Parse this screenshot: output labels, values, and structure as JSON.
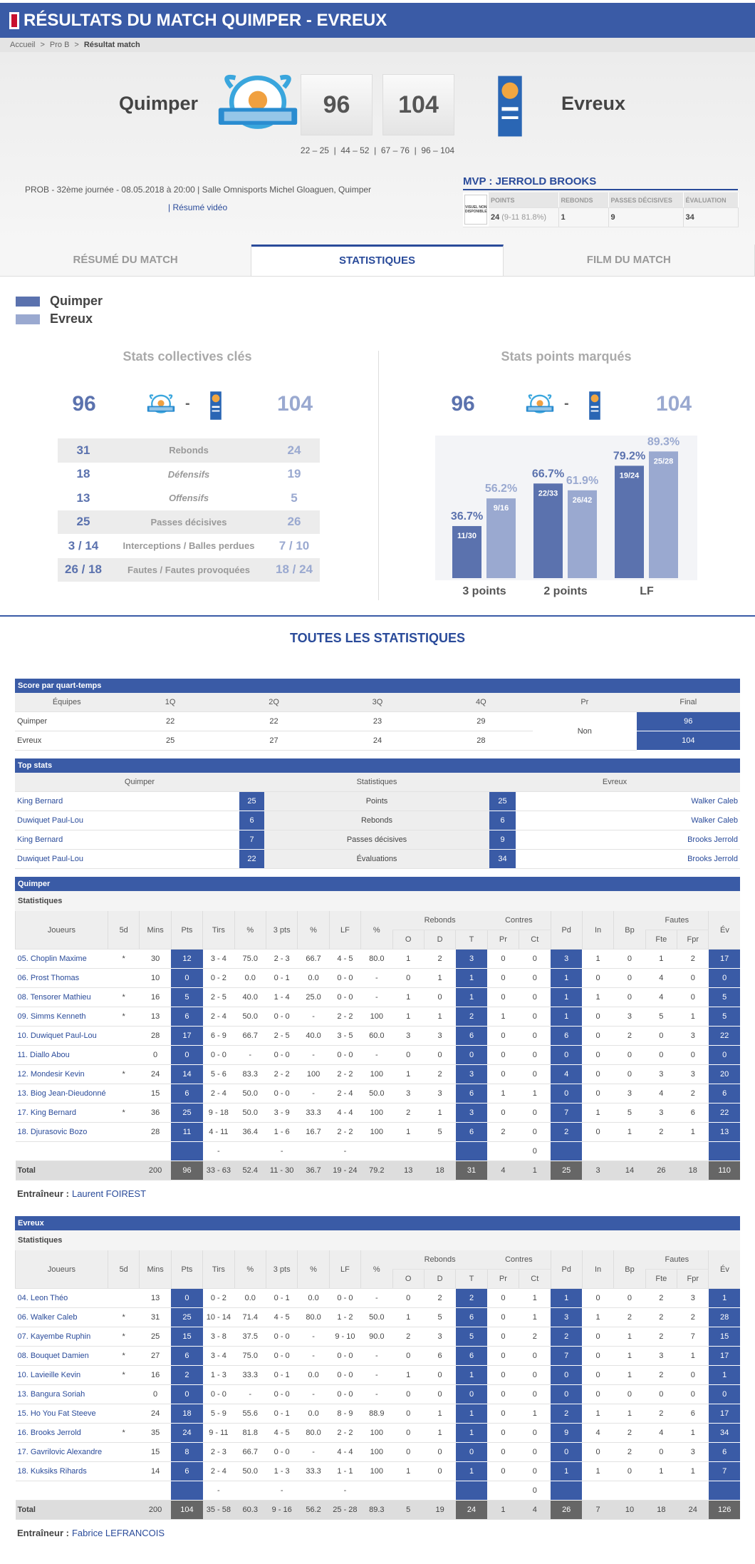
{
  "header": {
    "title": "RÉSULTATS DU MATCH QUIMPER - EVREUX"
  },
  "breadcrumb": {
    "items": [
      "Accueil",
      "Pro B",
      "Résultat match"
    ],
    "separator": ">"
  },
  "match": {
    "home": {
      "name": "Quimper",
      "score": 96
    },
    "away": {
      "name": "Evreux",
      "score": 104
    },
    "quarter_scores": "22 – 25  |  44 – 52  |  67 – 76  |  96 – 104",
    "info": "PROB - 32ème journée - 08.05.2018 à 20:00 | Salle Omnisports Michel Gloaguen, Quimper",
    "video": "| Résumé vidéo"
  },
  "mvp": {
    "title": "MVP : JERROLD BROOKS",
    "photo": "VISUEL NON DISPONIBLE",
    "columns": [
      "POINTS",
      "REBONDS",
      "PASSES DÉCISIVES",
      "ÉVALUATION"
    ],
    "values": [
      24,
      1,
      9,
      34
    ],
    "points_detail": "(9-11 81.8%)"
  },
  "tabs": {
    "items": [
      "RÉSUMÉ DU MATCH",
      "STATISTIQUES",
      "FILM DU MATCH"
    ],
    "active": 1
  },
  "key_stats": {
    "title": "Stats collectives clés",
    "score_separator": "-",
    "rows": [
      {
        "home": 31,
        "label": "Rebonds",
        "away": 24
      },
      {
        "home": 18,
        "label": "Défensifs",
        "away": 19
      },
      {
        "home": 13,
        "label": "Offensifs",
        "away": 5
      },
      {
        "home": 25,
        "label": "Passes décisives",
        "away": 26
      },
      {
        "home": "3 / 14",
        "label": "Interceptions / Balles perdues",
        "away": "7 / 10"
      },
      {
        "home": "26 / 18",
        "label": "Fautes / Fautes provoquées",
        "away": "18 / 24"
      }
    ]
  },
  "chart_data": {
    "type": "bar",
    "title": "Stats points marqués",
    "categories": [
      "3 points",
      "2 points",
      "LF"
    ],
    "series": [
      {
        "name": "Quimper",
        "color": "#5b72ae",
        "values": [
          36.7,
          66.7,
          79.2
        ],
        "value_labels": [
          "36.7%",
          "66.7%",
          "79.2%"
        ],
        "inner_labels": [
          "11/30",
          "22/33",
          "19/24"
        ]
      },
      {
        "name": "Evreux",
        "color": "#9aa9d0",
        "values": [
          56.2,
          61.9,
          89.3
        ],
        "value_labels": [
          "56.2%",
          "61.9%",
          "89.3%"
        ],
        "inner_labels": [
          "9/16",
          "26/42",
          "25/28"
        ]
      }
    ]
  },
  "all_stats": {
    "title": "TOUTES LES STATISTIQUES",
    "quarters": {
      "title": "Score par quart-temps",
      "columns": [
        "Équipes",
        "1Q",
        "2Q",
        "3Q",
        "4Q",
        "Pr",
        "Final"
      ],
      "rows": [
        {
          "team": "Quimper",
          "scores": [
            22,
            22,
            23,
            29
          ],
          "final": 96
        },
        {
          "team": "Evreux",
          "scores": [
            25,
            27,
            24,
            28
          ],
          "final": 104
        }
      ],
      "overtime": "Non"
    },
    "top_stats": {
      "title": "Top stats",
      "columns": [
        "Quimper",
        "Statistiques",
        "Evreux"
      ],
      "rows": [
        {
          "home_player": "King Bernard",
          "home_value": 25,
          "stat": "Points",
          "away_value": 25,
          "away_player": "Walker Caleb"
        },
        {
          "home_player": "Duwiquet Paul-Lou",
          "home_value": 6,
          "stat": "Rebonds",
          "away_value": 6,
          "away_player": "Walker Caleb"
        },
        {
          "home_player": "King Bernard",
          "home_value": 7,
          "stat": "Passes décisives",
          "away_value": 9,
          "away_player": "Brooks Jerrold"
        },
        {
          "home_player": "Duwiquet Paul-Lou",
          "home_value": 22,
          "stat": "Évaluations",
          "away_value": 34,
          "away_player": "Brooks Jerrold"
        }
      ]
    },
    "box_columns": [
      "Joueurs",
      "5d",
      "Mins",
      "Pts",
      "Tirs",
      "%",
      "3 pts",
      "%",
      "LF",
      "%",
      "O",
      "D",
      "T",
      "Pr",
      "Ct",
      "Pd",
      "In",
      "Bp",
      "Fte",
      "Fpr",
      "Év"
    ],
    "box_groups": [
      "Rebonds",
      "Contres",
      "Fautes"
    ],
    "teams": [
      {
        "name": "Quimper",
        "subtitle": "Statistiques",
        "coach_label": "Entraîneur :",
        "coach": "Laurent FOIREST",
        "players": [
          [
            "05. Choplin Maxime",
            "*",
            30,
            12,
            "3 - 4",
            "75.0",
            "2 - 3",
            66.7,
            "4 - 5",
            "80.0",
            1,
            2,
            3,
            0,
            0,
            3,
            1,
            0,
            1,
            2,
            17
          ],
          [
            "06. Prost Thomas",
            null,
            10,
            0,
            "0 - 2",
            "0.0",
            "0 - 1",
            "0.0",
            "0 - 0",
            "-",
            0,
            1,
            1,
            0,
            0,
            1,
            0,
            0,
            4,
            0,
            0
          ],
          [
            "08. Tensorer Mathieu",
            "*",
            16,
            5,
            "2 - 5",
            "40.0",
            "1 - 4",
            "25.0",
            "0 - 0",
            "-",
            1,
            0,
            1,
            0,
            0,
            1,
            1,
            0,
            4,
            0,
            5
          ],
          [
            "09. Simms Kenneth",
            "*",
            13,
            6,
            "2 - 4",
            "50.0",
            "0 - 0",
            "-",
            "2 - 2",
            100,
            1,
            1,
            2,
            1,
            0,
            1,
            0,
            3,
            5,
            1,
            5
          ],
          [
            "10. Duwiquet Paul-Lou",
            null,
            28,
            17,
            "6 - 9",
            66.7,
            "2 - 5",
            "40.0",
            "3 - 5",
            "60.0",
            3,
            3,
            6,
            0,
            0,
            6,
            0,
            2,
            0,
            3,
            22
          ],
          [
            "11. Diallo Abou",
            null,
            0,
            0,
            "0 - 0",
            "-",
            "0 - 0",
            "-",
            "0 - 0",
            "-",
            0,
            0,
            0,
            0,
            0,
            0,
            0,
            0,
            0,
            0,
            0
          ],
          [
            "12. Mondesir Kevin",
            "*",
            24,
            14,
            "5 - 6",
            83.3,
            "2 - 2",
            100,
            "2 - 2",
            100,
            1,
            2,
            3,
            0,
            0,
            4,
            0,
            0,
            3,
            3,
            20
          ],
          [
            "13. Biog Jean-Dieudonné",
            null,
            15,
            6,
            "2 - 4",
            "50.0",
            "0 - 0",
            "-",
            "2 - 4",
            "50.0",
            3,
            3,
            6,
            1,
            1,
            0,
            0,
            3,
            4,
            2,
            6
          ],
          [
            "17. King Bernard",
            "*",
            36,
            25,
            "9 - 18",
            "50.0",
            "3 - 9",
            33.3,
            "4 - 4",
            100,
            2,
            1,
            3,
            0,
            0,
            7,
            1,
            5,
            3,
            6,
            22
          ],
          [
            "18. Djurasovic Bozo",
            null,
            28,
            11,
            "4 - 11",
            36.4,
            "1 - 6",
            16.7,
            "2 - 2",
            100,
            1,
            5,
            6,
            2,
            0,
            2,
            0,
            1,
            2,
            1,
            13
          ],
          [
            null,
            null,
            null,
            null,
            "-",
            null,
            "-",
            null,
            "-",
            null,
            null,
            null,
            null,
            null,
            0,
            null,
            null,
            null,
            null,
            null,
            null
          ]
        ],
        "totals": [
          "Total",
          null,
          200,
          96,
          "33 - 63",
          52.4,
          "11 - 30",
          36.7,
          "19 - 24",
          79.2,
          13,
          18,
          31,
          4,
          1,
          25,
          3,
          14,
          26,
          18,
          110
        ]
      },
      {
        "name": "Evreux",
        "subtitle": "Statistiques",
        "coach_label": "Entraîneur :",
        "coach": "Fabrice LEFRANCOIS",
        "players": [
          [
            "04. Leon Théo",
            null,
            13,
            0,
            "0 - 2",
            "0.0",
            "0 - 1",
            "0.0",
            "0 - 0",
            "-",
            0,
            2,
            2,
            0,
            1,
            1,
            0,
            0,
            2,
            3,
            1
          ],
          [
            "06. Walker Caleb",
            "*",
            31,
            25,
            "10 - 14",
            71.4,
            "4 - 5",
            "80.0",
            "1 - 2",
            "50.0",
            1,
            5,
            6,
            0,
            1,
            3,
            1,
            2,
            2,
            2,
            28
          ],
          [
            "07. Kayembe Ruphin",
            "*",
            25,
            15,
            "3 - 8",
            37.5,
            "0 - 0",
            "-",
            "9 - 10",
            "90.0",
            2,
            3,
            5,
            0,
            2,
            2,
            0,
            1,
            2,
            7,
            15
          ],
          [
            "08. Bouquet Damien",
            "*",
            27,
            6,
            "3 - 4",
            "75.0",
            "0 - 0",
            "-",
            "0 - 0",
            "-",
            0,
            6,
            6,
            0,
            0,
            7,
            0,
            1,
            3,
            1,
            17
          ],
          [
            "10. Lavieille Kevin",
            "*",
            16,
            2,
            "1 - 3",
            33.3,
            "0 - 1",
            "0.0",
            "0 - 0",
            "-",
            1,
            0,
            1,
            0,
            0,
            0,
            0,
            1,
            2,
            0,
            1
          ],
          [
            "13. Bangura Soriah",
            null,
            0,
            0,
            "0 - 0",
            "-",
            "0 - 0",
            "-",
            "0 - 0",
            "-",
            0,
            0,
            0,
            0,
            0,
            0,
            0,
            0,
            0,
            0,
            0
          ],
          [
            "15. Ho You Fat Steeve",
            null,
            24,
            18,
            "5 - 9",
            55.6,
            "0 - 1",
            "0.0",
            "8 - 9",
            88.9,
            0,
            1,
            1,
            0,
            1,
            2,
            1,
            1,
            2,
            6,
            17
          ],
          [
            "16. Brooks Jerrold",
            "*",
            35,
            24,
            "9 - 11",
            81.8,
            "4 - 5",
            "80.0",
            "2 - 2",
            100,
            0,
            1,
            1,
            0,
            0,
            9,
            4,
            2,
            4,
            1,
            34
          ],
          [
            "17. Gavrilovic Alexandre",
            null,
            15,
            8,
            "2 - 3",
            66.7,
            "0 - 0",
            "-",
            "4 - 4",
            100,
            0,
            0,
            0,
            0,
            0,
            0,
            0,
            2,
            0,
            3,
            6
          ],
          [
            "18. Kuksiks Rihards",
            null,
            14,
            6,
            "2 - 4",
            "50.0",
            "1 - 3",
            33.3,
            "1 - 1",
            100,
            1,
            0,
            1,
            0,
            0,
            1,
            1,
            0,
            1,
            1,
            7
          ],
          [
            null,
            null,
            null,
            null,
            "-",
            null,
            "-",
            null,
            "-",
            null,
            null,
            null,
            null,
            null,
            0,
            null,
            null,
            null,
            null,
            null,
            null
          ]
        ],
        "totals": [
          "Total",
          null,
          200,
          104,
          "35 - 58",
          60.3,
          "9 - 16",
          56.2,
          "25 - 28",
          89.3,
          5,
          19,
          24,
          1,
          4,
          26,
          7,
          10,
          18,
          24,
          126
        ]
      }
    ]
  }
}
